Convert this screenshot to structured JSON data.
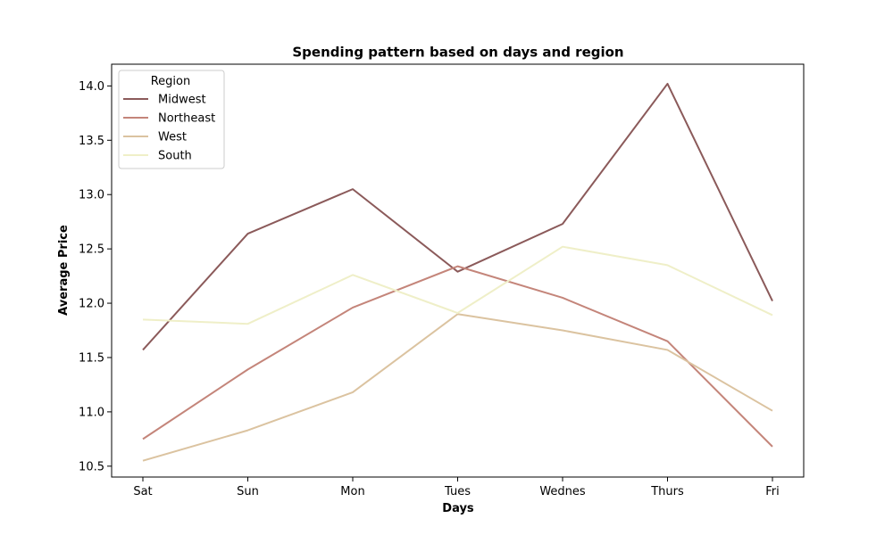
{
  "chart_data": {
    "type": "line",
    "title": "Spending pattern based on days and region",
    "xlabel": "Days",
    "ylabel": "Average Price",
    "categories": [
      "Sat",
      "Sun",
      "Mon",
      "Tues",
      "Wednes",
      "Thurs",
      "Fri"
    ],
    "ylim": [
      10.4,
      14.2
    ],
    "yticks": [
      10.5,
      11.0,
      11.5,
      12.0,
      12.5,
      13.0,
      13.5,
      14.0
    ],
    "grid": false,
    "legend": {
      "title": "Region",
      "position": "top-left"
    },
    "series": [
      {
        "name": "Midwest",
        "color": "#8B5A5A",
        "values": [
          11.57,
          12.64,
          13.05,
          12.29,
          12.73,
          14.02,
          12.02
        ]
      },
      {
        "name": "Northeast",
        "color": "#C4857A",
        "values": [
          10.75,
          11.39,
          11.96,
          12.34,
          12.05,
          11.65,
          10.68
        ]
      },
      {
        "name": "West",
        "color": "#DBC3A0",
        "values": [
          10.55,
          10.83,
          11.18,
          11.9,
          11.75,
          11.57,
          11.01
        ]
      },
      {
        "name": "South",
        "color": "#EFEFC8",
        "values": [
          11.85,
          11.81,
          12.26,
          11.91,
          12.52,
          12.35,
          11.89
        ]
      }
    ]
  }
}
